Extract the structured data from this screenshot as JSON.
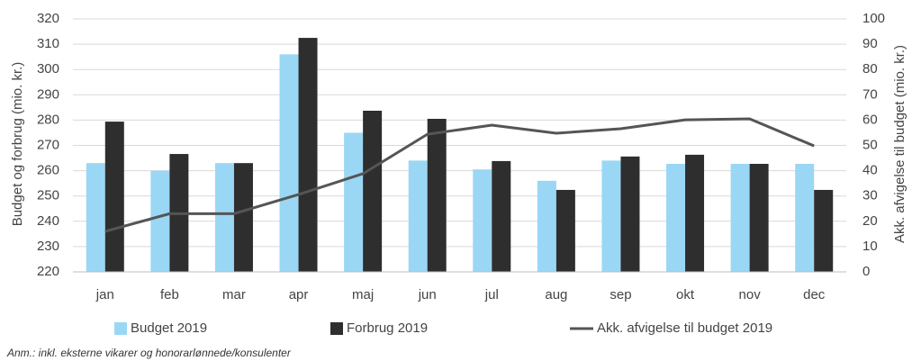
{
  "chart_data": {
    "type": "bar_line",
    "categories": [
      "jan",
      "feb",
      "mar",
      "apr",
      "maj",
      "jun",
      "jul",
      "aug",
      "sep",
      "okt",
      "nov",
      "dec"
    ],
    "series": [
      {
        "name": "Budget 2019",
        "type": "bar",
        "color": "#9ad7f5",
        "values": [
          263,
          260,
          263,
          306,
          275,
          264,
          260.5,
          256,
          264,
          262.7,
          262.7,
          262.7
        ]
      },
      {
        "name": "Forbrug 2019",
        "type": "bar",
        "color": "#2e2e2e",
        "values": [
          279.4,
          266.6,
          263,
          312.5,
          283.7,
          280.5,
          263.8,
          252.4,
          265.6,
          266.3,
          262.7,
          252.4
        ]
      },
      {
        "name": "Akk. afvigelse til budget 2019",
        "type": "line",
        "axis": "y2",
        "color": "#555555",
        "values": [
          16,
          23,
          23,
          30.6,
          38.8,
          54.4,
          58,
          54.8,
          56.6,
          60.1,
          60.5,
          49.8
        ]
      }
    ],
    "ylabel": "Budget og forbrug (mio. kr.)",
    "y2label": "Akk. afvigelse til budget (mio. kr.)",
    "ylim": [
      220,
      320
    ],
    "yticks": [
      220,
      230,
      240,
      250,
      260,
      270,
      280,
      290,
      300,
      310,
      320
    ],
    "y2lim": [
      0,
      100
    ],
    "y2ticks": [
      0,
      10,
      20,
      30,
      40,
      50,
      60,
      70,
      80,
      90,
      100
    ],
    "grid": true,
    "legend": "bottom",
    "note": "Anm.: inkl. eksterne vikarer og honorarlønnede/konsulenter"
  }
}
